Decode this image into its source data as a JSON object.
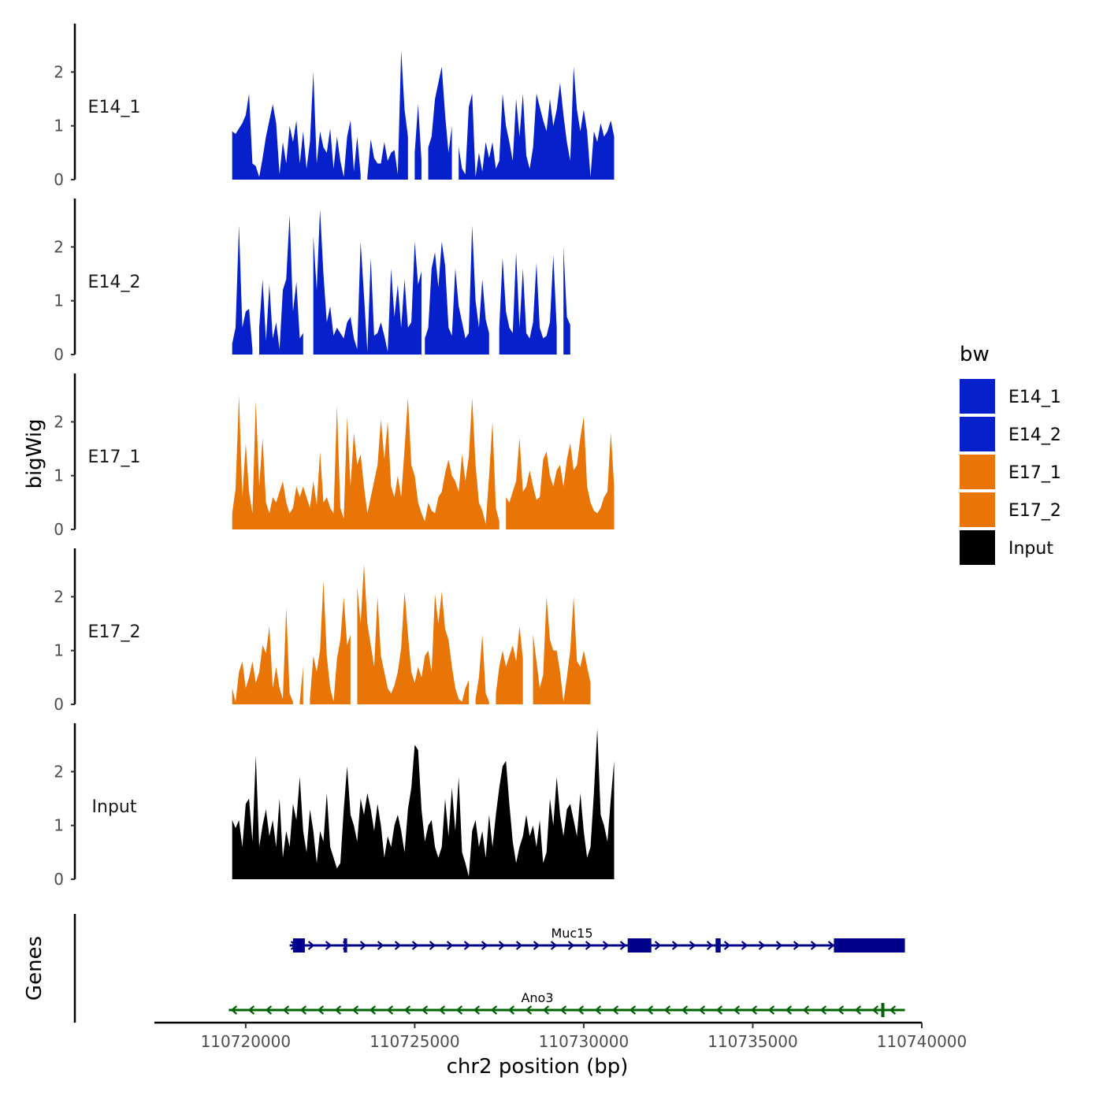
{
  "chart_data": {
    "type": "area",
    "title": "",
    "xlabel": "chr2 position (bp)",
    "ylabel": "bigWig",
    "genes_panel_label": "Genes",
    "xlim": [
      110717300,
      110740000
    ],
    "ylim": [
      0,
      2.9
    ],
    "x_ticks": [
      110720000,
      110725000,
      110730000,
      110735000,
      110740000
    ],
    "x_tick_labels": [
      "110720000",
      "110725000",
      "110730000",
      "110735000",
      "110740000"
    ],
    "y_ticks": [
      0,
      1,
      2
    ],
    "y_tick_labels": [
      "0",
      "1",
      "2"
    ],
    "legend": {
      "title": "bw",
      "placement": "right",
      "entries": [
        {
          "name": "E14_1",
          "color": "#0620CC"
        },
        {
          "name": "E14_2",
          "color": "#0620CC"
        },
        {
          "name": "E17_1",
          "color": "#E87505"
        },
        {
          "name": "E17_2",
          "color": "#E87505"
        },
        {
          "name": "Input",
          "color": "#000000"
        }
      ]
    },
    "x_start": 110719600,
    "x_step": 100,
    "series": [
      {
        "name": "E14_1",
        "color": "#0620CC",
        "values": [
          0.9,
          0.85,
          0.95,
          1.05,
          1.2,
          1.6,
          0.3,
          0.25,
          0.05,
          0.4,
          0.8,
          1.1,
          1.4,
          1.05,
          0.1,
          0.7,
          0.3,
          1.0,
          0.7,
          1.1,
          0.3,
          0.9,
          0.2,
          0.7,
          2.0,
          0.3,
          0.9,
          0.6,
          0.5,
          0.95,
          0.2,
          0.8,
          0.35,
          0.05,
          0.8,
          1.1,
          0.15,
          0.8,
          0.1,
          null,
          0.05,
          0.75,
          0.4,
          0.3,
          0.3,
          0.7,
          0.35,
          0.5,
          0.55,
          0.1,
          2.4,
          1.3,
          0.8,
          0.9,
          0.5,
          1.4,
          0.35,
          1.4,
          0.6,
          0.8,
          1.5,
          1.8,
          2.1,
          1.2,
          0.5,
          1.0,
          1.7,
          0.6,
          0.2,
          0.1,
          1.35,
          1.6,
          0.05,
          0.5,
          0.15,
          0.7,
          0.4,
          0.7,
          0.2,
          0.35,
          1.6,
          1.0,
          0.7,
          0.35,
          1.5,
          0.8,
          1.6,
          0.45,
          0.2,
          0.6,
          1.6,
          1.35,
          1.1,
          0.9,
          1.5,
          1.0,
          1.3,
          1.8,
          1.2,
          0.7,
          0.35,
          2.1,
          1.3,
          0.9,
          1.3,
          0.9,
          0.05,
          0.9,
          0.7,
          1.05,
          0.8,
          0.9,
          1.1,
          0.8
        ],
        "gaps": [
          [
            110724800,
            110725000
          ],
          [
            110725200,
            110725400
          ],
          [
            110726100,
            110726300
          ],
          [
            110733300,
            110733400
          ],
          [
            110738400,
            110738600
          ]
        ]
      },
      {
        "name": "E14_2",
        "color": "#0620CC",
        "values": [
          0.2,
          0.5,
          2.4,
          0.5,
          0.8,
          0.85,
          0.1,
          null,
          0.5,
          1.4,
          0.25,
          1.3,
          0.3,
          0.6,
          0.1,
          1.2,
          1.4,
          2.6,
          0.8,
          1.35,
          0.3,
          0.4,
          0.8,
          0.3,
          2.2,
          1.2,
          2.7,
          1.5,
          0.6,
          0.9,
          0.35,
          0.5,
          0.4,
          0.3,
          0.6,
          0.7,
          0.3,
          0.1,
          2.1,
          1.1,
          0.05,
          1.8,
          0.35,
          0.4,
          0.6,
          0.35,
          0.05,
          1.6,
          0.7,
          1.3,
          0.5,
          1.4,
          0.5,
          0.6,
          2.1,
          1.3,
          1.55,
          0.3,
          0.5,
          1.6,
          1.9,
          1.25,
          2.1,
          1.65,
          0.5,
          0.35,
          1.6,
          0.9,
          0.6,
          0.3,
          0.4,
          2.4,
          1.0,
          0.5,
          1.4,
          0.65,
          0.4,
          0.5,
          1.0,
          0.5,
          1.8,
          0.8,
          0.5,
          0.4,
          1.9,
          0.5,
          1.6,
          0.4,
          0.3,
          0.6,
          1.7,
          0.5,
          0.3,
          0.35,
          0.6,
          1.85,
          0.5,
          1.7,
          2.0,
          0.7,
          0.55
        ],
        "gaps": [
          [
            110721700,
            110722000
          ],
          [
            110725200,
            110725300
          ],
          [
            110727200,
            110727500
          ],
          [
            110729200,
            110729400
          ],
          [
            110734000,
            110734200
          ]
        ]
      },
      {
        "name": "E17_1",
        "color": "#E87505",
        "values": [
          0.3,
          0.75,
          2.5,
          0.6,
          1.6,
          0.7,
          0.3,
          2.4,
          0.8,
          1.7,
          0.5,
          0.3,
          0.6,
          0.5,
          0.7,
          0.9,
          0.5,
          0.3,
          0.4,
          0.8,
          0.6,
          0.8,
          0.6,
          0.4,
          0.9,
          0.45,
          1.45,
          0.5,
          0.6,
          0.4,
          0.3,
          2.3,
          0.4,
          0.2,
          2.1,
          0.8,
          1.8,
          1.2,
          1.4,
          0.8,
          0.3,
          0.6,
          0.9,
          1.2,
          2.05,
          1.3,
          2.0,
          0.8,
          0.6,
          1.0,
          0.6,
          1.5,
          2.45,
          1.2,
          1.0,
          0.5,
          0.3,
          0.15,
          0.5,
          0.35,
          0.3,
          0.6,
          0.7,
          1.05,
          1.3,
          1.0,
          0.9,
          0.7,
          1.4,
          0.9,
          1.35,
          2.45,
          1.2,
          0.5,
          0.35,
          0.1,
          1.0,
          2.0,
          0.4,
          0.15,
          null,
          0.6,
          0.5,
          0.7,
          0.9,
          1.7,
          0.7,
          0.8,
          1.1,
          0.8,
          0.55,
          0.6,
          1.3,
          1.45,
          1.0,
          0.8,
          1.1,
          1.2,
          0.8,
          1.3,
          1.6,
          1.1,
          1.2,
          1.7,
          2.1,
          0.8,
          0.5,
          0.35,
          0.3,
          0.4,
          0.6,
          0.7,
          1.8,
          0.8
        ],
        "gaps": [
          [
            110734000,
            110734100
          ]
        ]
      },
      {
        "name": "E17_2",
        "color": "#E87505",
        "values": [
          0.3,
          0.05,
          0.6,
          0.8,
          0.3,
          0.5,
          0.8,
          0.4,
          0.6,
          1.1,
          0.95,
          1.45,
          0.3,
          0.7,
          0.3,
          0.1,
          1.8,
          0.2,
          0.05,
          null,
          0.05,
          0.7,
          0.5,
          0.1,
          0.9,
          0.6,
          1.0,
          2.3,
          0.9,
          0.3,
          0.05,
          0.85,
          1.2,
          2.0,
          1.1,
          1.3,
          0.6,
          2.2,
          1.5,
          2.6,
          1.5,
          1.1,
          0.7,
          2.0,
          0.9,
          0.6,
          0.3,
          0.2,
          0.35,
          0.6,
          1.05,
          2.1,
          1.3,
          0.6,
          0.4,
          0.7,
          0.5,
          0.9,
          1.0,
          0.6,
          2.05,
          1.5,
          2.1,
          1.4,
          1.2,
          0.7,
          0.3,
          0.1,
          0.05,
          0.3,
          0.45,
          null,
          0.1,
          0.5,
          1.3,
          0.2,
          0.05,
          null,
          0.2,
          0.7,
          1.0,
          0.7,
          0.9,
          1.1,
          0.8,
          1.45,
          0.85,
          1.0,
          1.0,
          1.3,
          0.8,
          0.3,
          0.55,
          2.0,
          1.2,
          1.0,
          1.0,
          0.6,
          0.05,
          0.5,
          1.0,
          2.0,
          0.8,
          0.7,
          1.0,
          0.7,
          0.4
        ],
        "gaps": [
          [
            110721700,
            110721900
          ],
          [
            110723100,
            110723300
          ],
          [
            110728200,
            110728500
          ],
          [
            110732800,
            110733300
          ]
        ]
      },
      {
        "name": "Input",
        "color": "#000000",
        "values": [
          1.1,
          0.95,
          1.1,
          0.6,
          1.4,
          1.5,
          0.7,
          2.3,
          0.6,
          1.0,
          1.3,
          0.8,
          1.1,
          0.6,
          1.5,
          0.4,
          0.9,
          0.6,
          1.4,
          1.1,
          1.9,
          0.9,
          0.5,
          1.3,
          0.9,
          0.3,
          0.9,
          0.7,
          1.6,
          0.6,
          0.4,
          0.2,
          0.3,
          1.3,
          2.1,
          1.2,
          1.0,
          0.7,
          1.5,
          1.2,
          1.6,
          1.3,
          0.9,
          1.4,
          1.0,
          0.4,
          0.8,
          0.6,
          1.0,
          1.2,
          0.9,
          0.5,
          1.3,
          1.7,
          2.5,
          2.4,
          1.3,
          0.7,
          1.0,
          1.1,
          0.6,
          0.4,
          0.6,
          1.5,
          0.8,
          1.7,
          0.9,
          1.9,
          0.5,
          0.3,
          0.05,
          0.9,
          1.1,
          0.6,
          0.9,
          0.4,
          1.2,
          0.6,
          1.2,
          1.7,
          2.1,
          2.2,
          1.4,
          0.7,
          0.3,
          0.6,
          0.8,
          1.2,
          0.8,
          1.0,
          0.6,
          1.1,
          0.3,
          0.5,
          1.5,
          1.0,
          1.9,
          1.2,
          0.8,
          1.3,
          1.4,
          1.1,
          0.8,
          1.6,
          0.9,
          0.4,
          0.6,
          1.6,
          2.8,
          1.2,
          1.0,
          0.7,
          1.5,
          2.2
        ]
      }
    ],
    "gene_track": [
      {
        "name": "Ano3",
        "strand": "-",
        "color": "#006400",
        "start": 110719500,
        "end": 110739500,
        "exons": [
          [
            110738800,
            110738850
          ]
        ]
      },
      {
        "name": "Muc15",
        "strand": "+",
        "color": "#00008B",
        "start": 110721300,
        "end": 110739500,
        "exons": [
          [
            110721400,
            110721750
          ],
          [
            110722900,
            110723000
          ],
          [
            110731300,
            110732000
          ],
          [
            110733900,
            110734050
          ],
          [
            110737400,
            110739500
          ]
        ]
      }
    ]
  }
}
